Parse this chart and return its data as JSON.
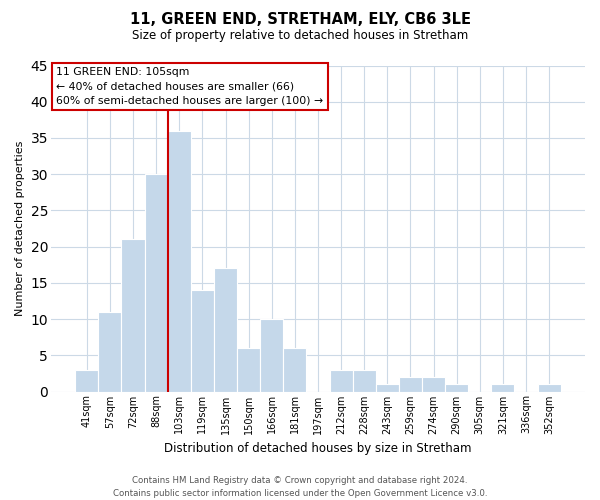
{
  "title": "11, GREEN END, STRETHAM, ELY, CB6 3LE",
  "subtitle": "Size of property relative to detached houses in Stretham",
  "xlabel": "Distribution of detached houses by size in Stretham",
  "ylabel": "Number of detached properties",
  "bar_labels": [
    "41sqm",
    "57sqm",
    "72sqm",
    "88sqm",
    "103sqm",
    "119sqm",
    "135sqm",
    "150sqm",
    "166sqm",
    "181sqm",
    "197sqm",
    "212sqm",
    "228sqm",
    "243sqm",
    "259sqm",
    "274sqm",
    "290sqm",
    "305sqm",
    "321sqm",
    "336sqm",
    "352sqm"
  ],
  "bar_values": [
    3,
    11,
    21,
    30,
    36,
    14,
    17,
    6,
    10,
    6,
    0,
    3,
    3,
    1,
    2,
    2,
    1,
    0,
    1,
    0,
    1
  ],
  "bar_color": "#c5d8ea",
  "vline_index": 4,
  "vline_color": "#cc0000",
  "annotation_line1": "11 GREEN END: 105sqm",
  "annotation_line2": "← 40% of detached houses are smaller (66)",
  "annotation_line3": "60% of semi-detached houses are larger (100) →",
  "ylim": [
    0,
    45
  ],
  "yticks": [
    0,
    5,
    10,
    15,
    20,
    25,
    30,
    35,
    40,
    45
  ],
  "background_color": "#ffffff",
  "grid_color": "#ccd9e6",
  "footer_line1": "Contains HM Land Registry data © Crown copyright and database right 2024.",
  "footer_line2": "Contains public sector information licensed under the Open Government Licence v3.0."
}
